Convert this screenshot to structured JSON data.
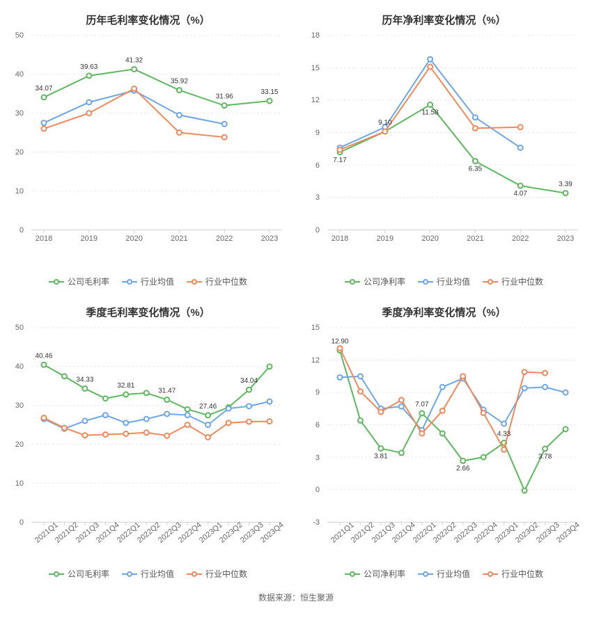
{
  "source_line": "数据来源：恒生聚源",
  "colors": {
    "company": "#5cb85c",
    "industry_avg": "#6ca6e8",
    "industry_median": "#f0885a",
    "grid": "#e8e8e8",
    "axis": "#d0d0d0",
    "text": "#333333",
    "tick": "#666666",
    "background": "#ffffff"
  },
  "charts": [
    {
      "id": "annual-gross",
      "title": "历年毛利率变化情况（%）",
      "ylim": [
        0,
        50
      ],
      "ytick_step": 10,
      "rotate_x": false,
      "categories": [
        "2018",
        "2019",
        "2020",
        "2021",
        "2022",
        "2023"
      ],
      "label_series": "company",
      "series": [
        {
          "key": "company",
          "name": "公司毛利率",
          "color": "#5cb85c",
          "values": [
            34.07,
            39.63,
            41.32,
            35.92,
            31.96,
            33.15
          ]
        },
        {
          "key": "industry_avg",
          "name": "行业均值",
          "color": "#6ca6e8",
          "values": [
            27.5,
            32.8,
            35.8,
            29.5,
            27.2,
            null
          ]
        },
        {
          "key": "industry_median",
          "name": "行业中位数",
          "color": "#f0885a",
          "values": [
            26.0,
            30.0,
            36.3,
            25.0,
            23.8,
            null
          ]
        }
      ],
      "labels": [
        {
          "i": 0,
          "text": "34.07",
          "dy": -10
        },
        {
          "i": 1,
          "text": "39.63",
          "dy": -10
        },
        {
          "i": 2,
          "text": "41.32",
          "dy": -10
        },
        {
          "i": 3,
          "text": "35.92",
          "dy": -10
        },
        {
          "i": 4,
          "text": "31.96",
          "dy": -10
        },
        {
          "i": 5,
          "text": "33.15",
          "dy": -10
        }
      ]
    },
    {
      "id": "annual-net",
      "title": "历年净利率变化情况（%）",
      "ylim": [
        0,
        18
      ],
      "ytick_step": 3,
      "rotate_x": false,
      "categories": [
        "2018",
        "2019",
        "2020",
        "2021",
        "2022",
        "2023"
      ],
      "label_series": "company",
      "series": [
        {
          "key": "company",
          "name": "公司净利率",
          "color": "#5cb85c",
          "values": [
            7.17,
            9.1,
            11.58,
            6.35,
            4.07,
            3.39
          ]
        },
        {
          "key": "industry_avg",
          "name": "行业均值",
          "color": "#6ca6e8",
          "values": [
            7.6,
            9.5,
            15.8,
            10.4,
            7.6,
            null
          ]
        },
        {
          "key": "industry_median",
          "name": "行业中位数",
          "color": "#f0885a",
          "values": [
            7.4,
            9.1,
            15.1,
            9.4,
            9.5,
            null
          ]
        }
      ],
      "labels": [
        {
          "i": 0,
          "text": "7.17",
          "dy": 14
        },
        {
          "i": 1,
          "text": "9.10",
          "dy": -10
        },
        {
          "i": 2,
          "text": "11.58",
          "dy": 14
        },
        {
          "i": 3,
          "text": "6.35",
          "dy": 14
        },
        {
          "i": 4,
          "text": "4.07",
          "dy": 14
        },
        {
          "i": 5,
          "text": "3.39",
          "dy": -10
        }
      ]
    },
    {
      "id": "quarterly-gross",
      "title": "季度毛利率变化情况（%）",
      "ylim": [
        0,
        50
      ],
      "ytick_step": 10,
      "rotate_x": true,
      "categories": [
        "2021Q1",
        "2021Q2",
        "2021Q3",
        "2021Q4",
        "2022Q1",
        "2022Q2",
        "2022Q3",
        "2022Q4",
        "2023Q1",
        "2023Q2",
        "2023Q3",
        "2023Q4"
      ],
      "label_series": "company",
      "series": [
        {
          "key": "company",
          "name": "公司毛利率",
          "color": "#5cb85c",
          "values": [
            40.46,
            37.5,
            34.33,
            31.8,
            32.81,
            33.2,
            31.47,
            29.0,
            27.46,
            29.5,
            34.04,
            40.0
          ]
        },
        {
          "key": "industry_avg",
          "name": "行业均值",
          "color": "#6ca6e8",
          "values": [
            26.5,
            24.0,
            26.0,
            27.5,
            25.5,
            26.5,
            27.8,
            27.5,
            25.0,
            29.2,
            29.8,
            31.0
          ]
        },
        {
          "key": "industry_median",
          "name": "行业中位数",
          "color": "#f0885a",
          "values": [
            26.8,
            24.2,
            22.3,
            22.5,
            22.7,
            23.0,
            22.2,
            25.0,
            21.8,
            25.5,
            25.8,
            25.9
          ]
        }
      ],
      "labels": [
        {
          "i": 0,
          "text": "40.46",
          "dy": -10
        },
        {
          "i": 2,
          "text": "34.33",
          "dy": -10
        },
        {
          "i": 4,
          "text": "32.81",
          "dy": -10
        },
        {
          "i": 6,
          "text": "31.47",
          "dy": -10
        },
        {
          "i": 8,
          "text": "27.46",
          "dy": -10
        },
        {
          "i": 10,
          "text": "34.04",
          "dy": -10
        }
      ]
    },
    {
      "id": "quarterly-net",
      "title": "季度净利率变化情况（%）",
      "ylim": [
        -3,
        15
      ],
      "ytick_step": 3,
      "rotate_x": true,
      "categories": [
        "2021Q1",
        "2021Q2",
        "2021Q3",
        "2021Q4",
        "2022Q1",
        "2022Q2",
        "2022Q3",
        "2022Q4",
        "2023Q1",
        "2023Q2",
        "2023Q3",
        "2023Q4"
      ],
      "label_series": "company",
      "series": [
        {
          "key": "company",
          "name": "公司净利率",
          "color": "#5cb85c",
          "values": [
            12.9,
            6.4,
            3.81,
            3.4,
            7.07,
            5.2,
            2.66,
            3.0,
            4.33,
            -0.1,
            3.78,
            5.6
          ]
        },
        {
          "key": "industry_avg",
          "name": "行业均值",
          "color": "#6ca6e8",
          "values": [
            10.4,
            10.5,
            7.5,
            7.7,
            5.5,
            9.5,
            10.3,
            7.4,
            6.1,
            9.4,
            9.5,
            9.0
          ]
        },
        {
          "key": "industry_median",
          "name": "行业中位数",
          "color": "#f0885a",
          "values": [
            13.1,
            9.1,
            7.2,
            8.3,
            5.2,
            7.3,
            10.5,
            7.1,
            3.7,
            10.9,
            10.8,
            null
          ]
        }
      ],
      "labels": [
        {
          "i": 0,
          "text": "12.90",
          "dy": -10
        },
        {
          "i": 2,
          "text": "3.81",
          "dy": 14
        },
        {
          "i": 4,
          "text": "7.07",
          "dy": -10
        },
        {
          "i": 6,
          "text": "2.66",
          "dy": 14
        },
        {
          "i": 8,
          "text": "4.33",
          "dy": -10
        },
        {
          "i": 10,
          "text": "3.78",
          "dy": 14
        }
      ]
    }
  ]
}
